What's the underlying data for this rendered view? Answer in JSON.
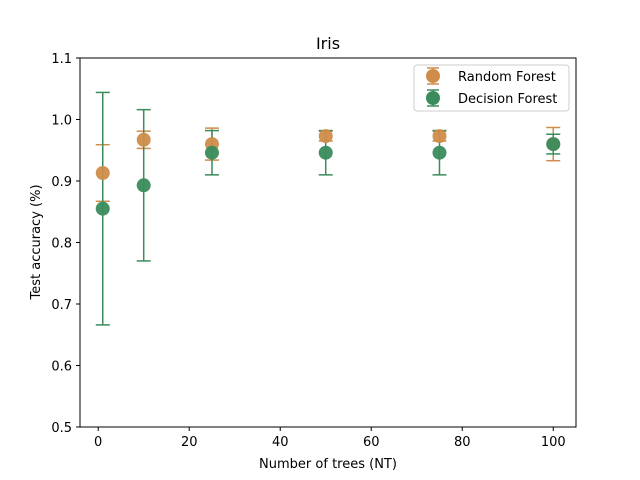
{
  "chart_data": {
    "type": "scatter",
    "title": "Iris",
    "xlabel": "Number of trees (NT)",
    "ylabel": "Test accuracy (%)",
    "xlim": [
      -4,
      105
    ],
    "ylim": [
      0.5,
      1.1
    ],
    "xticks": [
      0,
      20,
      40,
      60,
      80,
      100
    ],
    "yticks": [
      0.5,
      0.6,
      0.7,
      0.8,
      0.9,
      1.0,
      1.1
    ],
    "xtick_labels": [
      "0",
      "20",
      "40",
      "60",
      "80",
      "100"
    ],
    "ytick_labels": [
      "0.5",
      "0.6",
      "0.7",
      "0.8",
      "0.9",
      "1.0",
      "1.1"
    ],
    "grid": false,
    "legend_position": "top-right",
    "series": [
      {
        "name": "Random Forest",
        "color": "#d08c4a",
        "x": [
          1,
          10,
          25,
          50,
          75,
          100
        ],
        "y": [
          0.913,
          0.967,
          0.96,
          0.973,
          0.973,
          0.96
        ],
        "err": [
          0.046,
          0.014,
          0.026,
          0.008,
          0.008,
          0.027
        ]
      },
      {
        "name": "Decision Forest",
        "color": "#3a8c5c",
        "x": [
          1,
          10,
          25,
          50,
          75,
          100
        ],
        "y": [
          0.855,
          0.893,
          0.946,
          0.946,
          0.946,
          0.96
        ],
        "err": [
          0.189,
          0.123,
          0.036,
          0.036,
          0.036,
          0.016
        ]
      }
    ]
  }
}
